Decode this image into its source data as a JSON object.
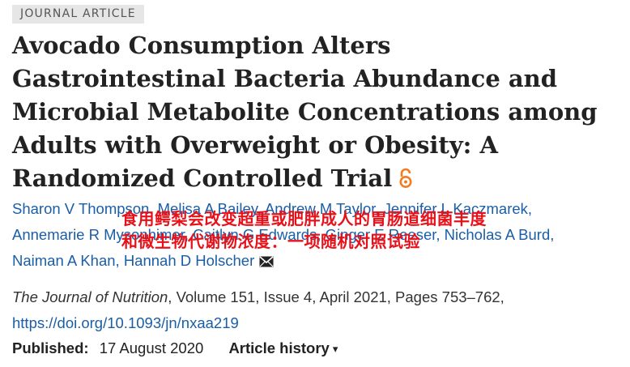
{
  "article": {
    "type_badge": "JOURNAL ARTICLE",
    "title": "Avocado Consumption Alters Gastrointestinal Bacteria Abundance and Microbial Metabolite Concentrations among Adults with Overweight or Obesity: A Randomized Controlled Trial",
    "authors": [
      "Sharon V Thompson",
      "Melisa A Bailey",
      "Andrew M Taylor",
      "Jennifer L Kaczmarek",
      "Annemarie R Mysonhimer",
      "Caitlyn G Edwards",
      "Ginger E Reeser",
      "Nicholas A Burd",
      "Naiman A Khan",
      "Hannah D Holscher"
    ],
    "journal": "The Journal of Nutrition",
    "citation_rest": ", Volume 151, Issue 4, April 2021, Pages 753–762,",
    "doi": "https://doi.org/10.1093/jn/nxaa219",
    "published_label": "Published:",
    "published_date": "17 August 2020",
    "history_label": "Article history",
    "history_caret": "▾"
  },
  "overlay": {
    "line1": "食用鳄梨会改变超重或肥胖成人的胃肠道细菌丰度",
    "line2": "和微生物代谢物浓度：一项随机对照试验"
  },
  "colors": {
    "link": "#1a5ea8",
    "overlay_text": "#e8111a",
    "open_access": "#f47c20",
    "badge_bg": "#e6e6e6"
  },
  "icons": {
    "open_access": "open-access-icon",
    "corresponding": "envelope-icon"
  }
}
